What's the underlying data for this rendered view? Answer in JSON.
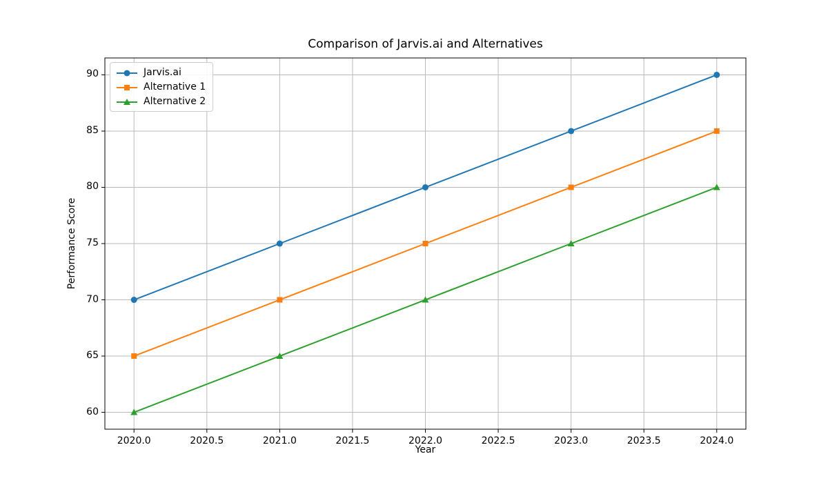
{
  "chart_data": {
    "type": "line",
    "title": "Comparison of Jarvis.ai and Alternatives",
    "xlabel": "Year",
    "ylabel": "Performance Score",
    "x": [
      2020,
      2021,
      2022,
      2023,
      2024
    ],
    "series": [
      {
        "name": "Jarvis.ai",
        "color": "#1f77b4",
        "marker": "circle",
        "values": [
          70,
          75,
          80,
          85,
          90
        ]
      },
      {
        "name": "Alternative 1",
        "color": "#ff7f0e",
        "marker": "square",
        "values": [
          65,
          70,
          75,
          80,
          85
        ]
      },
      {
        "name": "Alternative 2",
        "color": "#2ca02c",
        "marker": "triangle",
        "values": [
          60,
          65,
          70,
          75,
          80
        ]
      }
    ],
    "xlim": [
      2019.8,
      2024.2
    ],
    "ylim": [
      58.5,
      91.5
    ],
    "xticks": [
      2020.0,
      2020.5,
      2021.0,
      2021.5,
      2022.0,
      2022.5,
      2023.0,
      2023.5,
      2024.0
    ],
    "xtick_labels": [
      "2020.0",
      "2020.5",
      "2021.0",
      "2021.5",
      "2022.0",
      "2022.5",
      "2023.0",
      "2023.5",
      "2024.0"
    ],
    "yticks": [
      60,
      65,
      70,
      75,
      80,
      85,
      90
    ],
    "ytick_labels": [
      "60",
      "65",
      "70",
      "75",
      "80",
      "85",
      "90"
    ],
    "grid": true,
    "legend_position": "upper-left",
    "colors": {
      "background": "#ffffff",
      "grid": "#b9b9b9",
      "spine": "#000000"
    }
  }
}
